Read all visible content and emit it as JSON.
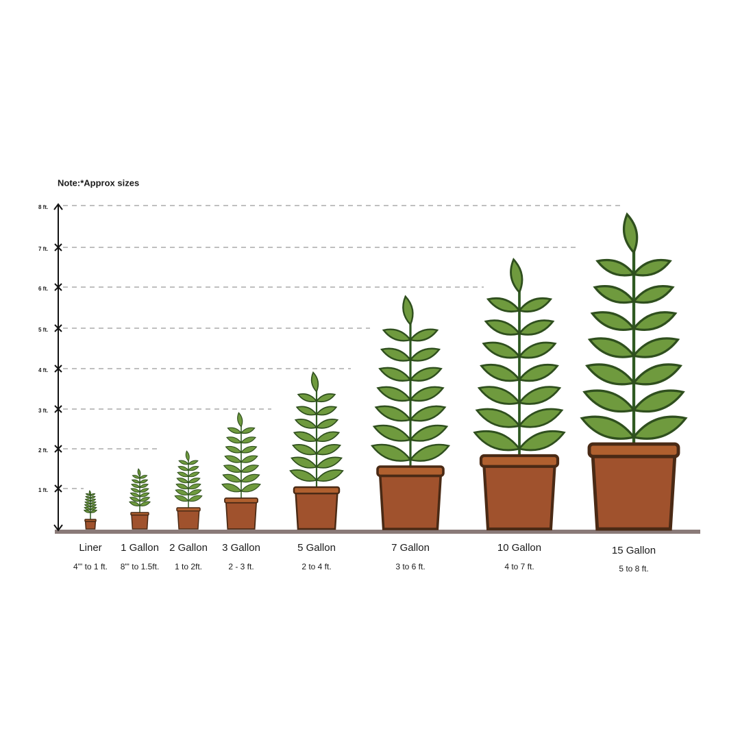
{
  "note": "Note:*Approx sizes",
  "axis_labels": [
    "1 ft.",
    "2 ft.",
    "3 ft.",
    "4 ft.",
    "5 ft.",
    "6 ft.",
    "7 ft.",
    "8 ft."
  ],
  "pots": [
    {
      "name": "Liner",
      "range": "4\"' to 1 ft."
    },
    {
      "name": "1 Gallon",
      "range": "8\"' to 1.5ft."
    },
    {
      "name": "2 Gallon",
      "range": "1 to 2ft."
    },
    {
      "name": "3 Gallon",
      "range": "2 - 3 ft."
    },
    {
      "name": "5 Gallon",
      "range": "2 to 4 ft."
    },
    {
      "name": "7 Gallon",
      "range": "3 to 6 ft."
    },
    {
      "name": "10 Gallon",
      "range": "4 to 7 ft."
    },
    {
      "name": "15 Gallon",
      "range": "5 to 8 ft."
    }
  ]
}
